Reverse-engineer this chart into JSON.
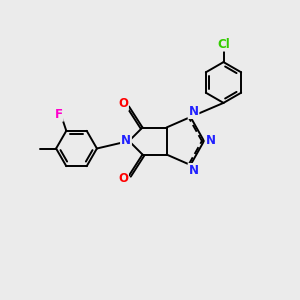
{
  "background_color": "#ebebeb",
  "bond_color": "#000000",
  "bond_width": 1.4,
  "atom_colors": {
    "N": "#2020ff",
    "O": "#ff0000",
    "F": "#ff00cc",
    "Cl": "#33cc00",
    "C": "#000000"
  },
  "font_size_atom": 8.5
}
